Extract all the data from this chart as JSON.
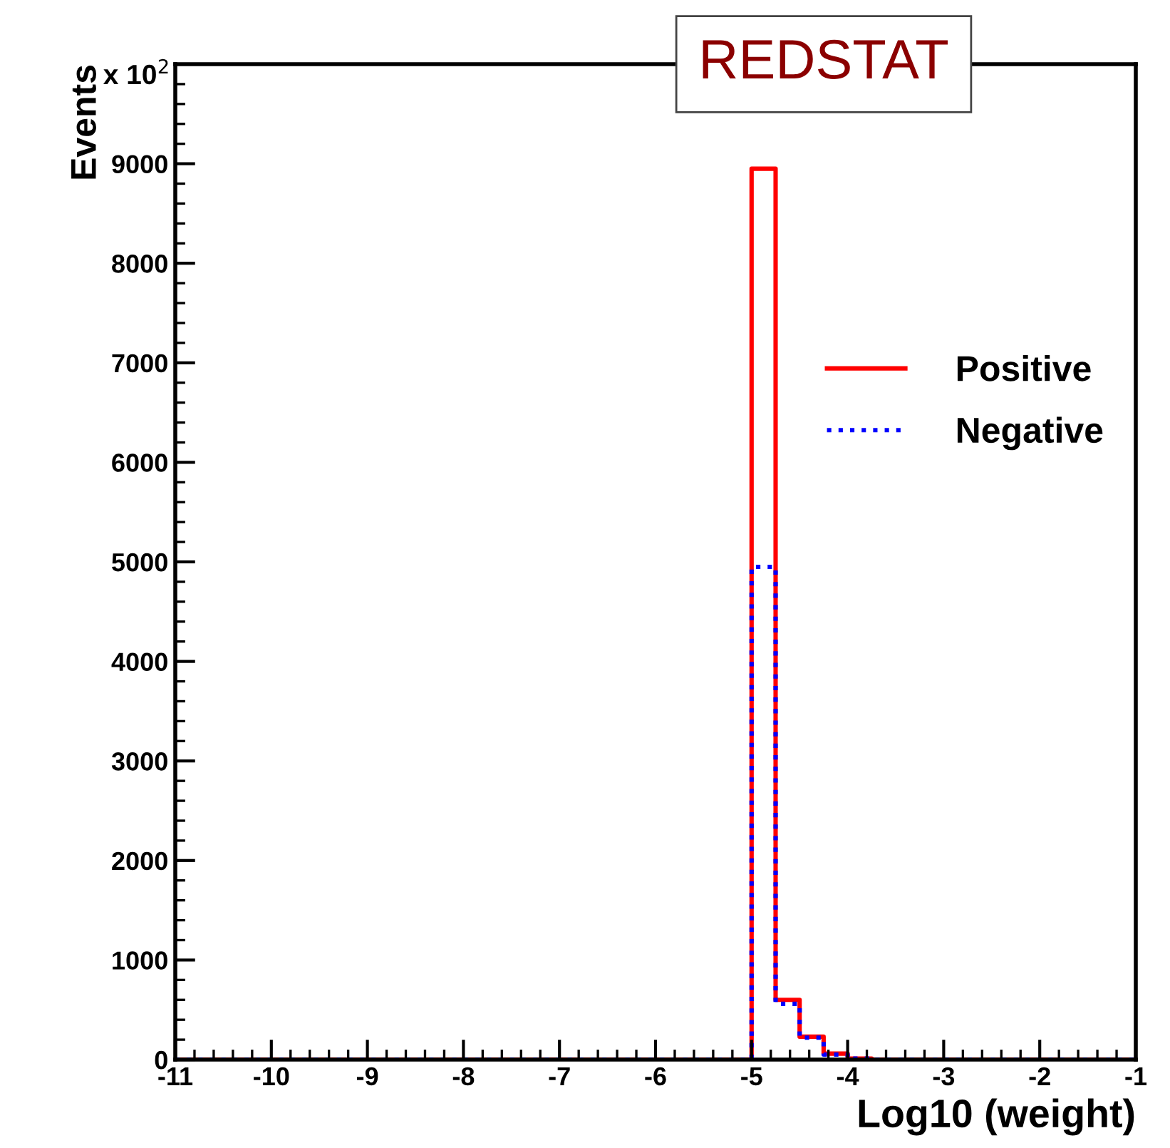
{
  "chart_data": {
    "type": "histogram",
    "title": "REDSTAT",
    "xlabel": "Log10 (weight)",
    "ylabel": "Events",
    "annotations": [
      "x 10$^{2}$"
    ],
    "bins": [
      -11,
      -10.75,
      -10.5,
      -10.25,
      -10,
      -9.75,
      -9.5,
      -9.25,
      -9,
      -8.75,
      -8.5,
      -8.25,
      -8,
      -7.75,
      -7.5,
      -7.25,
      -7,
      -6.75,
      -6.5,
      -6.25,
      -6,
      -5.75,
      -5.5,
      -5.25,
      -5,
      -4.75,
      -4.5,
      -4.25,
      -4,
      -3.75,
      -3.5,
      -3.25,
      -3,
      -2.75,
      -2.5,
      -2.25,
      -2,
      -1.75,
      -1.5,
      -1.25,
      -1
    ],
    "series": [
      {
        "name": "Positive",
        "color": "#ff0000",
        "line_style": "solid",
        "values": [
          0,
          0,
          0,
          0,
          0,
          0,
          0,
          0,
          0,
          0,
          0,
          0,
          0,
          0,
          0,
          0,
          0,
          0,
          0,
          0,
          0,
          0,
          0,
          0,
          8950,
          600,
          230,
          60,
          10,
          0,
          0,
          0,
          0,
          0,
          0,
          0,
          0,
          0,
          0,
          0
        ]
      },
      {
        "name": "Negative",
        "color": "#0000ff",
        "line_style": "dotted",
        "values": [
          0,
          0,
          0,
          0,
          0,
          0,
          0,
          0,
          0,
          0,
          0,
          0,
          0,
          0,
          0,
          0,
          0,
          0,
          0,
          0,
          0,
          0,
          0,
          0,
          4950,
          560,
          220,
          50,
          10,
          0,
          0,
          0,
          0,
          0,
          0,
          0,
          0,
          0,
          0,
          0
        ]
      }
    ],
    "xlim": [
      -11,
      -1
    ],
    "xticks": [
      -11,
      -10,
      -9,
      -8,
      -7,
      -6,
      -5,
      -4,
      -3,
      -2,
      -1
    ],
    "ylim": [
      0,
      10000
    ],
    "yticks": [
      0,
      1000,
      2000,
      3000,
      4000,
      5000,
      6000,
      7000,
      8000,
      9000
    ],
    "grid": false,
    "legend": "right"
  }
}
